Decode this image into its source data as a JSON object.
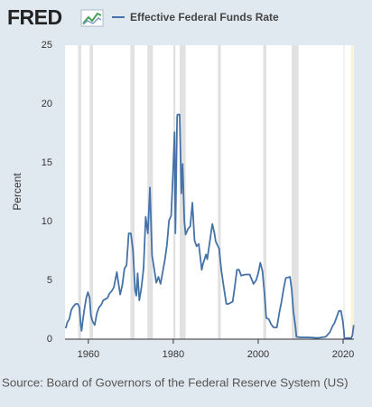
{
  "logo": "FRED",
  "source": "Source: Board of Governors of the Federal Reserve System (US)",
  "chart_data": {
    "type": "line",
    "y_label": "Percent",
    "xlim": [
      1954.5,
      2022.55
    ],
    "xticks": [
      1960,
      1980,
      2000,
      2020
    ],
    "ylim": [
      0,
      25
    ],
    "yticks": [
      0,
      5,
      10,
      15,
      20,
      25
    ],
    "grid": false,
    "recession_color": "#e1e1e1",
    "recessions": [
      [
        1957.6,
        1958.3
      ],
      [
        1960.3,
        1961.1
      ],
      [
        1969.9,
        1970.9
      ],
      [
        1973.9,
        1975.2
      ],
      [
        1980.0,
        1980.5
      ],
      [
        1981.5,
        1982.9
      ],
      [
        1990.5,
        1991.2
      ],
      [
        2001.2,
        2001.9
      ],
      [
        2007.9,
        2009.5
      ],
      [
        2020.1,
        2020.3
      ]
    ],
    "highlight_color": "#fbf3d5",
    "highlight": [
      2021.8,
      2022.55
    ],
    "x": [
      1954.5,
      1954.75,
      1955.0,
      1955.5,
      1956.0,
      1956.5,
      1957.0,
      1957.5,
      1957.9,
      1958.2,
      1958.4,
      1958.7,
      1959.0,
      1959.5,
      1959.9,
      1960.3,
      1960.6,
      1961.0,
      1961.5,
      1962.0,
      1962.5,
      1963.0,
      1963.5,
      1964.0,
      1964.5,
      1965.0,
      1965.5,
      1966.0,
      1966.7,
      1967.2,
      1967.5,
      1968.0,
      1968.5,
      1969.0,
      1969.5,
      1970.0,
      1970.5,
      1971.0,
      1971.3,
      1971.6,
      1972.0,
      1972.5,
      1973.0,
      1973.5,
      1974.0,
      1974.5,
      1975.0,
      1975.5,
      1976.0,
      1976.5,
      1977.0,
      1977.5,
      1978.0,
      1978.5,
      1979.0,
      1979.5,
      1979.9,
      1980.3,
      1980.5,
      1980.9,
      1981.0,
      1981.5,
      1981.9,
      1982.2,
      1982.6,
      1982.9,
      1983.5,
      1984.0,
      1984.5,
      1985.0,
      1985.5,
      1986.0,
      1986.7,
      1987.0,
      1987.7,
      1988.0,
      1988.6,
      1989.2,
      1989.7,
      1990.0,
      1990.8,
      1991.3,
      1991.9,
      1992.5,
      1993.0,
      1994.0,
      1994.5,
      1995.0,
      1995.5,
      1996.0,
      1997.0,
      1998.0,
      1998.9,
      1999.5,
      2000.0,
      2000.5,
      2001.0,
      2001.5,
      2001.9,
      2002.5,
      2003.0,
      2003.6,
      2004.4,
      2005.0,
      2005.5,
      2006.0,
      2006.5,
      2007.5,
      2007.9,
      2008.3,
      2008.8,
      2009.0,
      2010.0,
      2012.0,
      2014.0,
      2015.9,
      2016.9,
      2017.5,
      2018.0,
      2018.5,
      2019.0,
      2019.5,
      2019.9,
      2020.2,
      2020.3,
      2021.0,
      2021.9,
      2022.2,
      2022.5
    ],
    "series": [
      {
        "name": "Effective Federal Funds Rate",
        "color": "#4572a7",
        "values": [
          1.0,
          1.0,
          1.4,
          1.7,
          2.5,
          2.8,
          3.0,
          3.0,
          2.7,
          1.2,
          0.7,
          1.6,
          2.4,
          3.5,
          4.0,
          3.5,
          2.0,
          1.5,
          1.2,
          2.2,
          2.7,
          2.9,
          3.3,
          3.4,
          3.5,
          3.9,
          4.1,
          4.4,
          5.7,
          4.5,
          3.8,
          4.6,
          6.0,
          6.3,
          9.0,
          9.0,
          7.6,
          4.2,
          3.7,
          5.6,
          3.3,
          4.4,
          6.0,
          10.4,
          9.0,
          12.9,
          7.1,
          6.0,
          4.8,
          5.3,
          4.7,
          5.7,
          6.7,
          8.0,
          10.1,
          10.5,
          13.8,
          17.6,
          9.0,
          18.9,
          19.1,
          19.1,
          12.4,
          14.9,
          10.1,
          8.9,
          9.4,
          9.6,
          11.6,
          8.4,
          7.9,
          8.1,
          5.9,
          6.4,
          7.2,
          6.8,
          8.3,
          9.8,
          9.0,
          8.3,
          7.7,
          5.9,
          4.4,
          3.0,
          3.0,
          3.2,
          4.5,
          5.9,
          5.9,
          5.4,
          5.5,
          5.5,
          4.7,
          5.0,
          5.6,
          6.5,
          5.8,
          3.8,
          1.8,
          1.7,
          1.3,
          1.0,
          1.0,
          2.3,
          3.2,
          4.3,
          5.2,
          5.3,
          4.2,
          2.3,
          1.0,
          0.2,
          0.15,
          0.15,
          0.1,
          0.2,
          0.6,
          1.1,
          1.4,
          1.9,
          2.4,
          2.4,
          1.6,
          0.65,
          0.05,
          0.1,
          0.08,
          0.33,
          1.2
        ]
      }
    ]
  }
}
